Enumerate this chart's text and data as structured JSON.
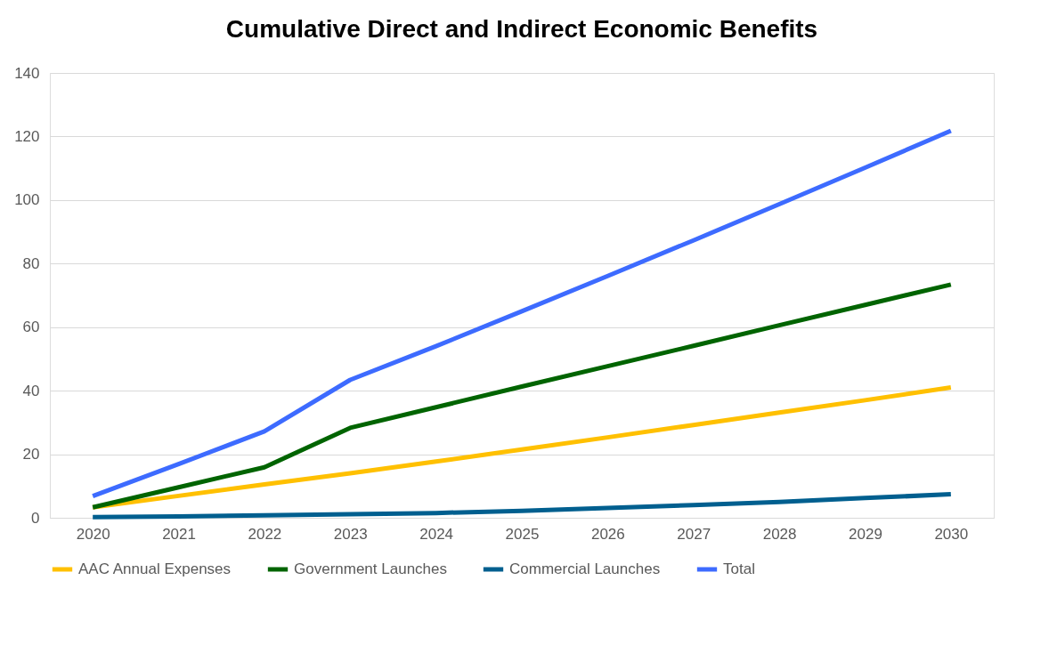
{
  "chart_data": {
    "type": "line",
    "title": "Cumulative Direct and Indirect Economic Benefits",
    "categories": [
      "2020",
      "2021",
      "2022",
      "2023",
      "2024",
      "2025",
      "2026",
      "2027",
      "2028",
      "2029",
      "2030"
    ],
    "series": [
      {
        "name": "AAC Annual Expenses",
        "color": "#ffc000",
        "values": [
          3.3,
          6.9,
          10.5,
          14.0,
          17.7,
          21.5,
          25.3,
          29.2,
          33.1,
          37.0,
          41.0
        ]
      },
      {
        "name": "Government Launches",
        "color": "#006400",
        "values": [
          3.3,
          9.6,
          15.9,
          28.3,
          34.8,
          41.3,
          47.7,
          54.1,
          60.6,
          67.0,
          73.4
        ]
      },
      {
        "name": "Commercial Launches",
        "color": "#005f8f",
        "values": [
          0.2,
          0.4,
          0.8,
          1.1,
          1.5,
          2.2,
          3.1,
          4.0,
          5.0,
          6.2,
          7.4
        ]
      },
      {
        "name": "Total",
        "color": "#3d6bff",
        "values": [
          6.8,
          16.9,
          27.2,
          43.4,
          54.0,
          65.0,
          76.1,
          87.3,
          98.7,
          110.2,
          121.8
        ]
      }
    ],
    "ylim": [
      0,
      140
    ],
    "yticks": [
      0,
      20,
      40,
      60,
      80,
      100,
      120,
      140
    ],
    "grid": "y",
    "legend": "bottom",
    "marker": "none",
    "line_style": "solid"
  }
}
